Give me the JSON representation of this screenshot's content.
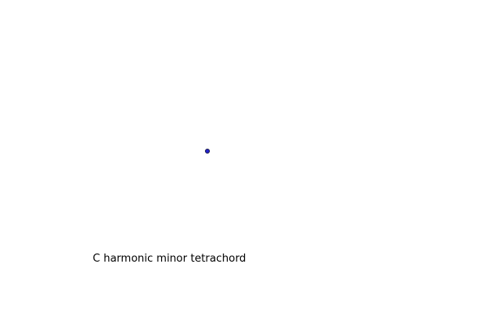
{
  "diagram": {
    "caption": "C harmonic minor tetrachord",
    "point": {
      "fill_color": "#2222cc",
      "stroke_color": "#1a1a4a"
    }
  }
}
